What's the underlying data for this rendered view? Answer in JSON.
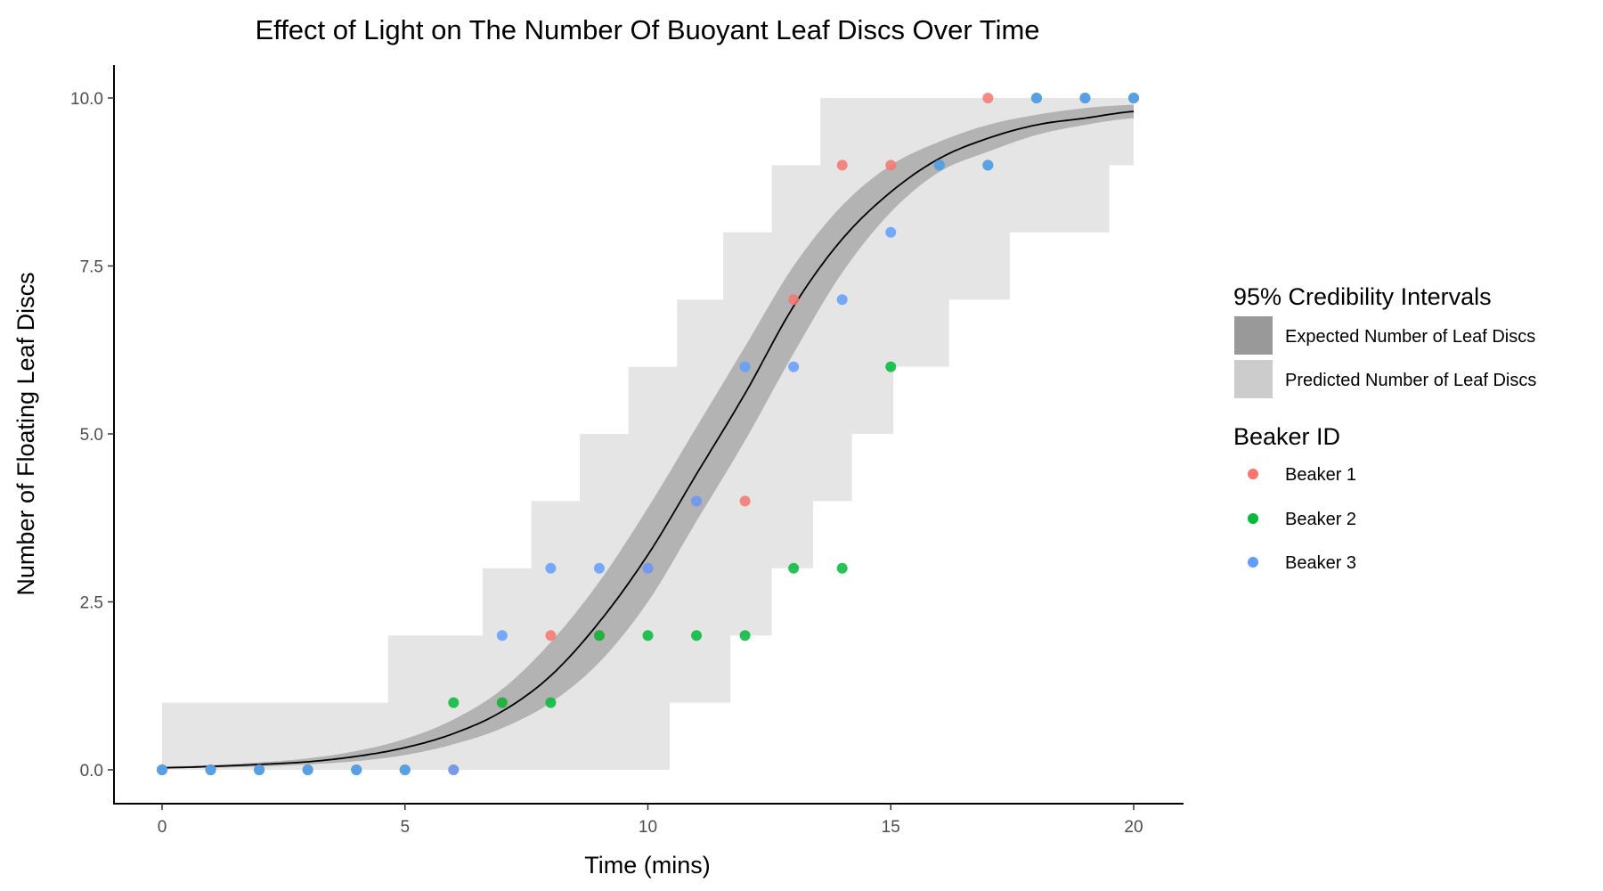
{
  "chart_data": {
    "type": "scatter",
    "title": "Effect of Light on The Number Of Buoyant Leaf Discs Over Time",
    "xlabel": "Time (mins)",
    "ylabel": "Number of Floating Leaf Discs",
    "xlim": [
      -1,
      21
    ],
    "ylim": [
      -0.5,
      10.5
    ],
    "xticks": [
      0,
      5,
      10,
      15,
      20
    ],
    "xtick_labels": [
      "0",
      "5",
      "10",
      "15",
      "20"
    ],
    "yticks": [
      0,
      2.5,
      5,
      7.5,
      10
    ],
    "ytick_labels": [
      "0.0",
      "2.5",
      "5.0",
      "7.5",
      "10.0"
    ],
    "grid": false,
    "legend_placement": "right",
    "interval_legend": {
      "title": "95% Credibility Intervals",
      "items": [
        {
          "label": "Expected Number of Leaf Discs",
          "color": "#999999"
        },
        {
          "label": "Predicted Number of Leaf Discs",
          "color": "#cccccc"
        }
      ]
    },
    "series_legend_title": "Beaker ID",
    "series": [
      {
        "name": "Beaker 1",
        "color": "#F8766D",
        "x": [
          0,
          1,
          2,
          3,
          4,
          5,
          6,
          7,
          8,
          9,
          10,
          11,
          12,
          13,
          14,
          15,
          16,
          17,
          18,
          19,
          20
        ],
        "y": [
          0,
          0,
          0,
          0,
          0,
          0,
          0,
          1,
          2,
          2,
          3,
          4,
          4,
          7,
          9,
          9,
          9,
          10,
          10,
          10,
          10
        ]
      },
      {
        "name": "Beaker 2",
        "color": "#00BA38",
        "x": [
          0,
          1,
          2,
          3,
          4,
          5,
          6,
          7,
          8,
          9,
          10,
          11,
          12,
          13,
          14,
          15,
          16,
          17,
          18,
          19,
          20
        ],
        "y": [
          0,
          0,
          0,
          0,
          0,
          0,
          1,
          1,
          1,
          2,
          2,
          2,
          2,
          3,
          3,
          6,
          9,
          9,
          10,
          10,
          10
        ]
      },
      {
        "name": "Beaker 3",
        "color": "#619CFF",
        "x": [
          0,
          1,
          2,
          3,
          4,
          5,
          6,
          7,
          8,
          9,
          10,
          11,
          12,
          13,
          14,
          15,
          16,
          17,
          18,
          19,
          20
        ],
        "y": [
          0,
          0,
          0,
          0,
          0,
          0,
          0,
          2,
          3,
          3,
          3,
          4,
          6,
          6,
          7,
          8,
          9,
          9,
          10,
          10,
          10
        ]
      }
    ],
    "expected_curve": {
      "x": [
        0,
        1,
        2,
        3,
        4,
        5,
        6,
        7,
        8,
        9,
        10,
        11,
        12,
        13,
        14,
        15,
        16,
        17,
        18,
        19,
        20
      ],
      "y": [
        0.03,
        0.05,
        0.08,
        0.12,
        0.2,
        0.33,
        0.54,
        0.87,
        1.4,
        2.2,
        3.2,
        4.4,
        5.6,
        6.9,
        7.9,
        8.6,
        9.1,
        9.4,
        9.6,
        9.7,
        9.8
      ],
      "lower": [
        0.02,
        0.03,
        0.05,
        0.08,
        0.13,
        0.22,
        0.38,
        0.62,
        1.0,
        1.6,
        2.5,
        3.7,
        4.9,
        6.2,
        7.4,
        8.3,
        8.9,
        9.2,
        9.45,
        9.6,
        9.7
      ],
      "upper": [
        0.05,
        0.07,
        0.11,
        0.17,
        0.28,
        0.46,
        0.75,
        1.2,
        1.9,
        2.8,
        3.9,
        5.1,
        6.3,
        7.5,
        8.4,
        9.0,
        9.35,
        9.6,
        9.75,
        9.85,
        9.9
      ]
    },
    "predicted_interval_steps": {
      "upper": [
        [
          0,
          1
        ],
        [
          4.65,
          2
        ],
        [
          6.6,
          3
        ],
        [
          7.6,
          4
        ],
        [
          8.6,
          5
        ],
        [
          9.6,
          6
        ],
        [
          10.6,
          7
        ],
        [
          11.55,
          8
        ],
        [
          12.55,
          9
        ],
        [
          13.55,
          10
        ]
      ],
      "lower": [
        [
          0,
          0
        ],
        [
          10.45,
          1
        ],
        [
          11.7,
          2
        ],
        [
          12.55,
          3
        ],
        [
          13.4,
          4
        ],
        [
          14.2,
          5
        ],
        [
          15.05,
          6
        ],
        [
          16.2,
          7
        ],
        [
          17.45,
          8
        ],
        [
          19.5,
          9
        ]
      ]
    }
  }
}
